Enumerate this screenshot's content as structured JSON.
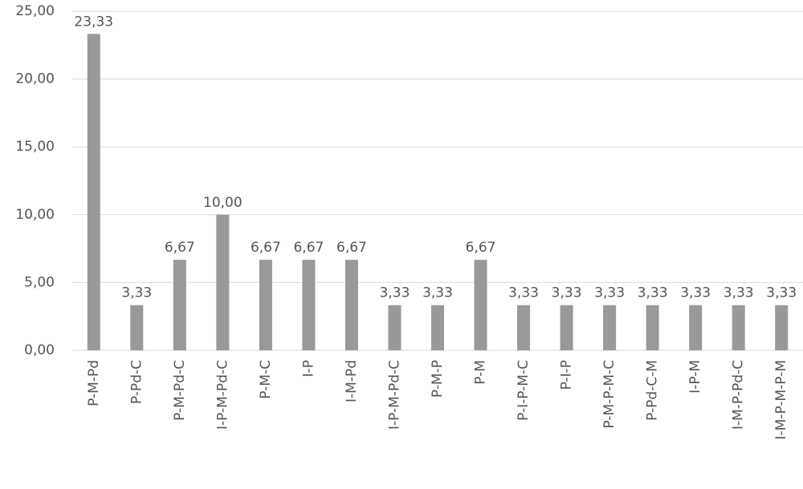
{
  "chart_data": {
    "type": "bar",
    "categories": [
      "P-M-Pd",
      "P-Pd-C",
      "P-M-Pd-C",
      "I-P-M-Pd-C",
      "P-M-C",
      "I-P",
      "I-M-Pd",
      "I-P-M-Pd-C",
      "P-M-P",
      "P-M",
      "P-I-P-M-C",
      "P-I-P",
      "P-M-P-M-C",
      "P-Pd-C-M",
      "I-P-M",
      "I-M-P-Pd-C",
      "I-M-P-M-P-M"
    ],
    "values": [
      23.33,
      3.33,
      6.67,
      10.0,
      6.67,
      6.67,
      6.67,
      3.33,
      3.33,
      6.67,
      3.33,
      3.33,
      3.33,
      3.33,
      3.33,
      3.33,
      3.33
    ],
    "value_labels": [
      "23,33",
      "3,33",
      "6,67",
      "10,00",
      "6,67",
      "6,67",
      "6,67",
      "3,33",
      "3,33",
      "6,67",
      "3,33",
      "3,33",
      "3,33",
      "3,33",
      "3,33",
      "3,33",
      "3,33"
    ],
    "color": "#999999",
    "ylim": [
      0,
      25
    ],
    "yticks": [
      {
        "value": 0,
        "label": "0,00"
      },
      {
        "value": 5,
        "label": "5,00"
      },
      {
        "value": 10,
        "label": "10,00"
      },
      {
        "value": 15,
        "label": "15,00"
      },
      {
        "value": 20,
        "label": "20,00"
      },
      {
        "value": 25,
        "label": "25,00"
      }
    ],
    "grid": true
  }
}
